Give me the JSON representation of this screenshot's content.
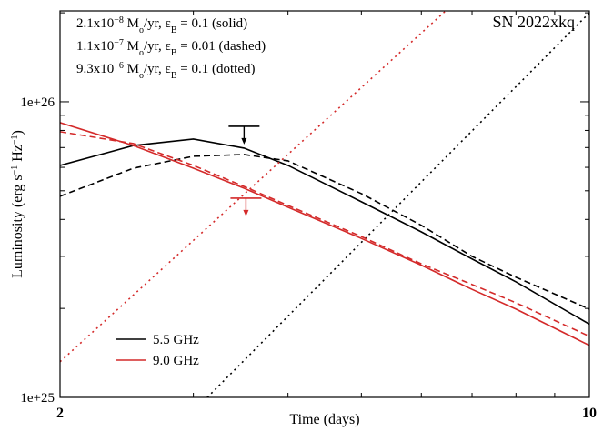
{
  "chart_data": {
    "type": "line",
    "title": "SN 2022xkq",
    "xlabel": "Time (days)",
    "ylabel": [
      {
        "t": "Luminosity (erg s"
      },
      {
        "t": "−1",
        "s": "sup"
      },
      {
        "t": " Hz"
      },
      {
        "t": "−1",
        "s": "sup"
      },
      {
        "t": ")"
      }
    ],
    "annotations": [
      [
        {
          "t": "2.1x10"
        },
        {
          "t": "−8",
          "s": "sup"
        },
        {
          "t": " M"
        },
        {
          "t": "o",
          "s": "sub"
        },
        {
          "t": "/yr, ε"
        },
        {
          "t": "B",
          "s": "sub"
        },
        {
          "t": " = 0.1 (solid)"
        }
      ],
      [
        {
          "t": "1.1x10"
        },
        {
          "t": "−7",
          "s": "sup"
        },
        {
          "t": " M"
        },
        {
          "t": "o",
          "s": "sub"
        },
        {
          "t": "/yr, ε"
        },
        {
          "t": "B",
          "s": "sub"
        },
        {
          "t": " = 0.01 (dashed)"
        }
      ],
      [
        {
          "t": "9.3x10"
        },
        {
          "t": "−6",
          "s": "sup"
        },
        {
          "t": " M"
        },
        {
          "t": "o",
          "s": "sub"
        },
        {
          "t": "/yr, ε"
        },
        {
          "t": "B",
          "s": "sub"
        },
        {
          "t": " = 0.1 (dotted)"
        }
      ]
    ],
    "xlog": true,
    "ylog": true,
    "xlim": [
      2,
      10
    ],
    "ylim": [
      1e+25,
      2.03e+26
    ],
    "xticks": [
      2,
      10
    ],
    "xminorticks": [
      3,
      4,
      5,
      6,
      7,
      8,
      9
    ],
    "yticks": [
      {
        "value": 1e+25,
        "label": "1e+25"
      },
      {
        "value": 1e+26,
        "label": "1e+26"
      }
    ],
    "yminorticks": [
      2e+25,
      3e+25,
      4e+25,
      5e+25,
      6e+25,
      7e+25,
      8e+25,
      9e+25,
      2e+26
    ],
    "legend": [
      {
        "name": "5.5 GHz",
        "color": "#000000"
      },
      {
        "name": "9.0 GHz",
        "color": "#d42a2a"
      }
    ],
    "legend_position": "lower left",
    "series": [
      {
        "color": "#000000",
        "dash": "solid",
        "x": [
          2,
          2.5,
          3,
          3.5,
          4,
          5,
          6,
          7,
          8,
          10
        ],
        "values": [
          6.09e+25,
          7.11e+25,
          7.48e+25,
          6.97e+25,
          6.09e+25,
          4.59e+25,
          3.63e+25,
          2.94e+25,
          2.46e+25,
          1.77e+25
        ]
      },
      {
        "color": "#000000",
        "dash": "dashed",
        "x": [
          2,
          2.5,
          3,
          3.5,
          4,
          5,
          6,
          7,
          8,
          10
        ],
        "values": [
          4.79e+25,
          5.96e+25,
          6.54e+25,
          6.63e+25,
          6.31e+25,
          4.89e+25,
          3.82e+25,
          3e+25,
          2.55e+25,
          1.99e+25
        ]
      },
      {
        "color": "#000000",
        "dash": "dotted",
        "x": [
          3.13,
          10
        ],
        "values": [
          1e+25,
          2e+26
        ]
      },
      {
        "color": "#d42a2a",
        "dash": "solid",
        "x": [
          2,
          2.5,
          3,
          3.5,
          4,
          5,
          6,
          7,
          8,
          10
        ],
        "values": [
          8.5e+25,
          7.11e+25,
          5.96e+25,
          5.1e+25,
          4.4e+25,
          3.45e+25,
          2.8e+25,
          2.32e+25,
          1.99e+25,
          1.5e+25
        ]
      },
      {
        "color": "#d42a2a",
        "dash": "dashed",
        "x": [
          2,
          2.5,
          3,
          3.5,
          4,
          5,
          6,
          7,
          8,
          10
        ],
        "values": [
          7.92e+25,
          7.22e+25,
          6.09e+25,
          5.17e+25,
          4.46e+25,
          3.5e+25,
          2.83e+25,
          2.41e+25,
          2.09e+25,
          1.61e+25
        ]
      },
      {
        "color": "#d42a2a",
        "dash": "dotted",
        "x": [
          2,
          6.46
        ],
        "values": [
          1.32e+25,
          2.03e+26
        ]
      }
    ],
    "upper_limits": [
      {
        "x": 3.5,
        "value": 8.26e+25,
        "color": "#000000"
      },
      {
        "x": 3.52,
        "value": 4.72e+25,
        "color": "#d42a2a"
      }
    ]
  }
}
